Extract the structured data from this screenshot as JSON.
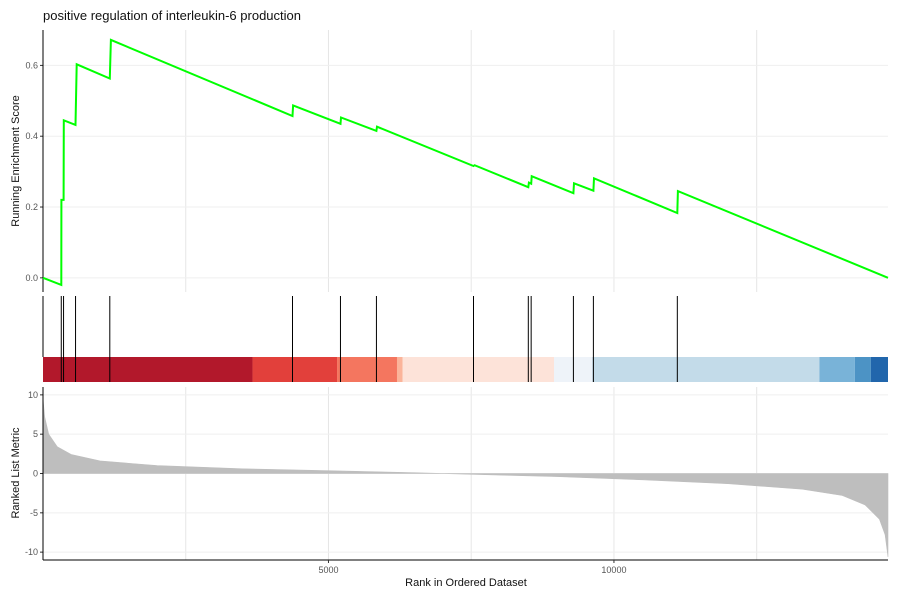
{
  "chart_data": {
    "type": "line",
    "title": "positive regulation of interleukin-6 production",
    "xlabel": "Rank in Ordered Dataset",
    "x_range": [
      0,
      14800
    ],
    "x_ticks": [
      5000,
      10000
    ],
    "x_grid": [
      2500,
      5000,
      7500,
      10000,
      12500
    ],
    "panels": {
      "enrichment": {
        "ylabel": "Running Enrichment Score",
        "ylim": [
          -0.04,
          0.7
        ],
        "y_ticks": [
          0.0,
          0.2,
          0.4,
          0.6
        ],
        "line_color": "#00ff00",
        "points": [
          [
            0,
            0.0
          ],
          [
            320,
            -0.02
          ],
          [
            322,
            0.22
          ],
          [
            360,
            0.22
          ],
          [
            365,
            0.445
          ],
          [
            570,
            0.432
          ],
          [
            590,
            0.603
          ],
          [
            1170,
            0.563
          ],
          [
            1190,
            0.672
          ],
          [
            4370,
            0.457
          ],
          [
            4380,
            0.487
          ],
          [
            5210,
            0.435
          ],
          [
            5220,
            0.453
          ],
          [
            5840,
            0.415
          ],
          [
            5850,
            0.427
          ],
          [
            7540,
            0.316
          ],
          [
            7560,
            0.318
          ],
          [
            8500,
            0.256
          ],
          [
            8510,
            0.269
          ],
          [
            8550,
            0.266
          ],
          [
            8560,
            0.287
          ],
          [
            9290,
            0.239
          ],
          [
            9300,
            0.267
          ],
          [
            9640,
            0.246
          ],
          [
            9650,
            0.281
          ],
          [
            11110,
            0.183
          ],
          [
            11120,
            0.245
          ],
          [
            14800,
            0.0
          ]
        ]
      },
      "hits": {
        "positions": [
          320,
          360,
          570,
          1170,
          4370,
          5210,
          5840,
          7540,
          8500,
          8550,
          9290,
          9640,
          11110
        ]
      },
      "color_band": {
        "segments": [
          {
            "start": 0,
            "end": 3670,
            "color": "#b2182b"
          },
          {
            "start": 3670,
            "end": 5150,
            "color": "#e2403b"
          },
          {
            "start": 5150,
            "end": 6200,
            "color": "#f4765f"
          },
          {
            "start": 6200,
            "end": 6300,
            "color": "#fbb49a"
          },
          {
            "start": 6300,
            "end": 8950,
            "color": "#fde3d9"
          },
          {
            "start": 8950,
            "end": 9620,
            "color": "#eef3f9"
          },
          {
            "start": 9620,
            "end": 13600,
            "color": "#c3dbe9"
          },
          {
            "start": 13600,
            "end": 14220,
            "color": "#79b3d8"
          },
          {
            "start": 14220,
            "end": 14500,
            "color": "#4c93c5"
          },
          {
            "start": 14500,
            "end": 14800,
            "color": "#2166ac"
          }
        ]
      },
      "ranked_metric": {
        "ylabel": "Ranked List Metric",
        "ylim": [
          -11,
          11
        ],
        "y_ticks": [
          10,
          5,
          0,
          -5,
          -10
        ],
        "fill_color": "#bebebe",
        "points": [
          [
            0,
            9.5
          ],
          [
            30,
            7.2
          ],
          [
            100,
            5.0
          ],
          [
            250,
            3.4
          ],
          [
            500,
            2.4
          ],
          [
            1000,
            1.6
          ],
          [
            2000,
            1.0
          ],
          [
            3500,
            0.6
          ],
          [
            5000,
            0.35
          ],
          [
            6500,
            0.1
          ],
          [
            7500,
            -0.1
          ],
          [
            9000,
            -0.4
          ],
          [
            10500,
            -0.8
          ],
          [
            12000,
            -1.3
          ],
          [
            13300,
            -2.0
          ],
          [
            14000,
            -2.8
          ],
          [
            14400,
            -4.0
          ],
          [
            14650,
            -5.8
          ],
          [
            14750,
            -7.8
          ],
          [
            14800,
            -10.6
          ]
        ]
      }
    }
  }
}
